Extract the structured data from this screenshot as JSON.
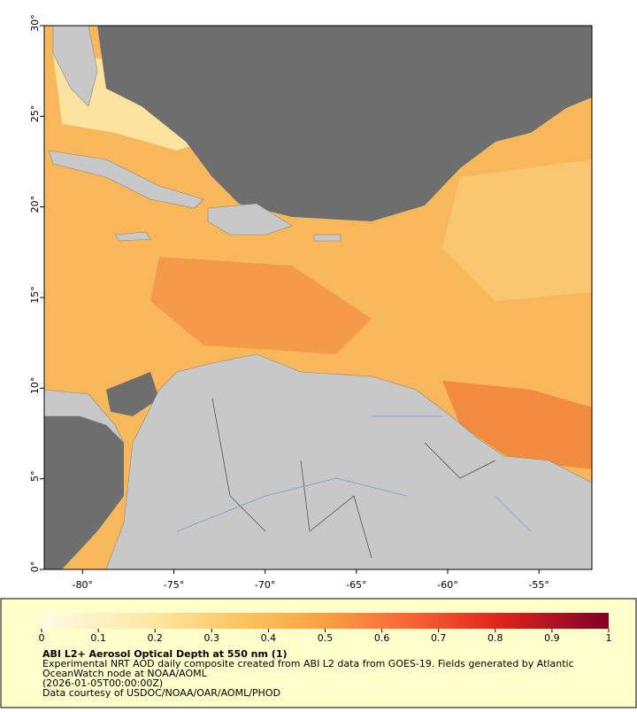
{
  "map": {
    "xlim": [
      -82.1,
      -52.1
    ],
    "ylim": [
      0,
      30
    ],
    "xticks": [
      {
        "value": -80,
        "label": "-80°"
      },
      {
        "value": -75,
        "label": "-75°"
      },
      {
        "value": -70,
        "label": "-70°"
      },
      {
        "value": -65,
        "label": "-65°"
      },
      {
        "value": -60,
        "label": "-60°"
      },
      {
        "value": -55,
        "label": "-55°"
      }
    ],
    "yticks": [
      {
        "value": 0,
        "label": "0°"
      },
      {
        "value": 5,
        "label": "5°"
      },
      {
        "value": 10,
        "label": "10°"
      },
      {
        "value": 15,
        "label": "15°"
      },
      {
        "value": 20,
        "label": "20°"
      },
      {
        "value": 25,
        "label": "25°"
      },
      {
        "value": 30,
        "label": "30°"
      }
    ]
  },
  "legend": {
    "lim": [
      0,
      1
    ],
    "ticks": [
      0,
      0.1,
      0.2,
      0.3,
      0.4,
      0.5,
      0.6,
      0.7,
      0.8,
      0.9,
      1
    ],
    "title": "ABI L2+ Aerosol Optical Depth at 550 nm (1)",
    "description_lines": [
      "Experimental NRT AOD daily composite created from ABI L2 data from GOES-19. Fields generated by Atlantic",
      "OceanWatch node at NOAA/AOML"
    ],
    "date": "(2026-01-05T00:00:00Z)",
    "credit": "Data courtesy of USDOC/NOAA/OAR/AOML/PHOD"
  }
}
